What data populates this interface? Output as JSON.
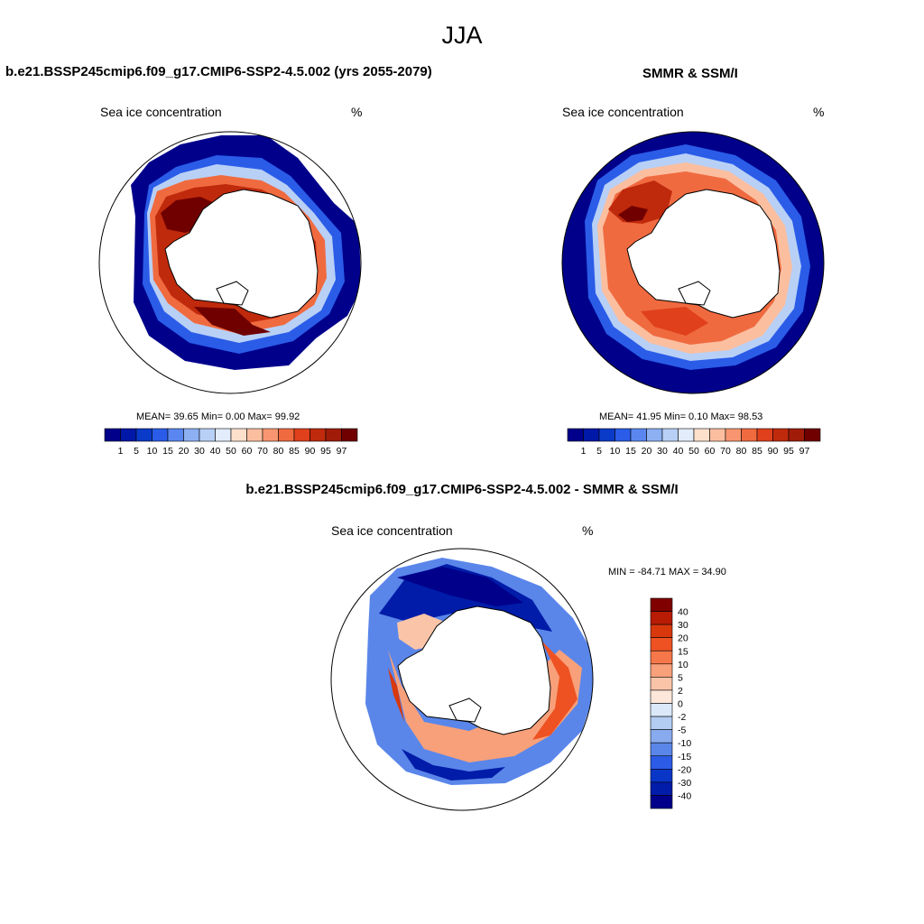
{
  "figure": {
    "title": "JJA"
  },
  "panels": {
    "model": {
      "title": "b.e21.BSSP245cmip6.f09_g17.CMIP6-SSP2-4.5.002 (yrs 2055-2079)",
      "left_label": "Sea ice concentration",
      "right_label": "%",
      "stats": "MEAN=  39.65  Min=   0.00  Max=  99.92"
    },
    "obs": {
      "title": "SMMR & SSM/I",
      "left_label": "Sea ice concentration",
      "right_label": "%",
      "stats": "MEAN=  41.95  Min=   0.10  Max=  98.53"
    },
    "diff": {
      "title": "b.e21.BSSP245cmip6.f09_g17.CMIP6-SSP2-4.5.002 - SMMR & SSM/I",
      "left_label": "Sea ice concentration",
      "right_label": "%",
      "stats": "MIN = -84.71 MAX =  34.90"
    }
  },
  "colorbars": {
    "concentration": {
      "levels": [
        "1",
        "5",
        "10",
        "15",
        "20",
        "30",
        "40",
        "50",
        "60",
        "70",
        "80",
        "85",
        "90",
        "95",
        "97"
      ],
      "colors": [
        "#00008b",
        "#0018a8",
        "#0a3ac8",
        "#2a5ce8",
        "#5a86f0",
        "#8cb0f2",
        "#b8d0f6",
        "#e2ecfa",
        "#fde0cc",
        "#fbbfa0",
        "#f79670",
        "#f06a40",
        "#e0401c",
        "#c02a0c",
        "#a01c08",
        "#700000"
      ]
    },
    "difference": {
      "levels": [
        "40",
        "30",
        "20",
        "15",
        "10",
        "5",
        "2",
        "0",
        "-2",
        "-5",
        "-10",
        "-15",
        "-20",
        "-30",
        "-40"
      ],
      "colors": [
        "#800000",
        "#b81c04",
        "#d8380c",
        "#ee5222",
        "#f6784a",
        "#f8a07a",
        "#fac4a8",
        "#fde6da",
        "#dae8fa",
        "#b2ccf2",
        "#88aaee",
        "#5a86ea",
        "#2c5ce6",
        "#0a36c8",
        "#001ca8",
        "#00008b"
      ]
    }
  }
}
